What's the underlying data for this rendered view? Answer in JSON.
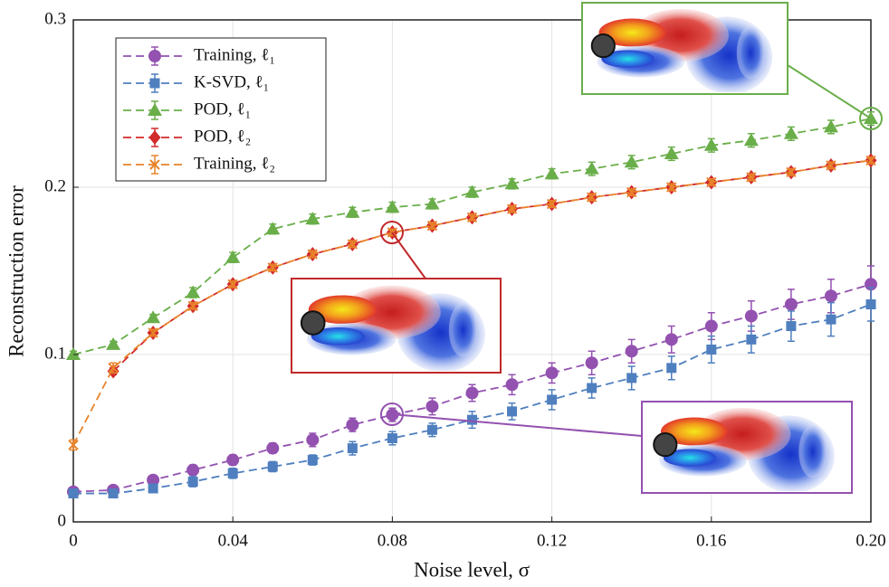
{
  "chart_data": {
    "type": "line",
    "x_label": "Noise level, σ",
    "y_label": "Reconstruction error",
    "x": [
      0,
      0.01,
      0.02,
      0.03,
      0.04,
      0.05,
      0.06,
      0.07,
      0.08,
      0.09,
      0.1,
      0.11,
      0.12,
      0.13,
      0.14,
      0.15,
      0.16,
      0.17,
      0.18,
      0.19,
      0.2
    ],
    "xlim": [
      0,
      0.2
    ],
    "ylim": [
      0,
      0.3
    ],
    "xticks": [
      0,
      0.04,
      0.08,
      0.12,
      0.16,
      {
        "value": 0.2,
        "label": "0.20"
      }
    ],
    "yticks": [
      0,
      0.1,
      0.2,
      0.3
    ],
    "grid": true,
    "legend_position": "upper left",
    "series": [
      {
        "name": "Training, ℓ₁",
        "color": "#9351b0",
        "marker": "circle",
        "values": [
          0.018,
          0.019,
          0.025,
          0.031,
          0.037,
          0.044,
          0.049,
          0.058,
          0.064,
          0.069,
          0.077,
          0.082,
          0.089,
          0.095,
          0.102,
          0.109,
          0.117,
          0.123,
          0.13,
          0.135,
          0.142
        ],
        "errors": [
          0.002,
          0.002,
          0.002,
          0.003,
          0.003,
          0.003,
          0.004,
          0.004,
          0.004,
          0.005,
          0.005,
          0.006,
          0.006,
          0.007,
          0.007,
          0.008,
          0.008,
          0.009,
          0.009,
          0.01,
          0.011
        ]
      },
      {
        "name": "K-SVD, ℓ₁",
        "color": "#4f7fbf",
        "marker": "square",
        "values": [
          0.017,
          0.017,
          0.02,
          0.024,
          0.029,
          0.033,
          0.037,
          0.044,
          0.05,
          0.055,
          0.061,
          0.066,
          0.073,
          0.08,
          0.086,
          0.092,
          0.103,
          0.109,
          0.117,
          0.121,
          0.13
        ],
        "errors": [
          0.002,
          0.002,
          0.002,
          0.003,
          0.003,
          0.003,
          0.003,
          0.004,
          0.004,
          0.004,
          0.005,
          0.005,
          0.006,
          0.006,
          0.007,
          0.007,
          0.008,
          0.008,
          0.009,
          0.01,
          0.01
        ]
      },
      {
        "name": "POD, ℓ₁",
        "color": "#6aae4a",
        "marker": "triangle",
        "values": [
          0.1,
          0.106,
          0.122,
          0.137,
          0.158,
          0.175,
          0.181,
          0.185,
          0.188,
          0.19,
          0.197,
          0.202,
          0.208,
          0.211,
          0.215,
          0.22,
          0.225,
          0.228,
          0.232,
          0.236,
          0.241
        ],
        "errors": [
          0.002,
          0.002,
          0.002,
          0.003,
          0.003,
          0.003,
          0.003,
          0.003,
          0.003,
          0.003,
          0.003,
          0.003,
          0.003,
          0.004,
          0.004,
          0.004,
          0.004,
          0.004,
          0.004,
          0.004,
          0.004
        ]
      },
      {
        "name": "POD, ℓ₂",
        "color": "#d22b2b",
        "marker": "diamond",
        "values": [
          null,
          0.09,
          0.113,
          0.129,
          0.142,
          0.152,
          0.16,
          0.166,
          0.173,
          0.177,
          0.182,
          0.187,
          0.19,
          0.194,
          0.197,
          0.2,
          0.203,
          0.206,
          0.209,
          0.213,
          0.216
        ],
        "errors": [
          null,
          0.002,
          0.002,
          0.002,
          0.002,
          0.002,
          0.002,
          0.002,
          0.002,
          0.002,
          0.002,
          0.002,
          0.002,
          0.002,
          0.002,
          0.002,
          0.002,
          0.002,
          0.002,
          0.002,
          0.002
        ]
      },
      {
        "name": "Training, ℓ₂",
        "color": "#e8832a",
        "marker": "x",
        "values": [
          0.046,
          0.092,
          0.113,
          0.129,
          0.142,
          0.152,
          0.16,
          0.166,
          0.173,
          0.177,
          0.182,
          0.187,
          0.19,
          0.194,
          0.197,
          0.2,
          0.203,
          0.206,
          0.209,
          0.213,
          0.216
        ],
        "errors": [
          0.003,
          0.003,
          0.002,
          0.002,
          0.002,
          0.002,
          0.002,
          0.002,
          0.002,
          0.002,
          0.002,
          0.002,
          0.002,
          0.002,
          0.002,
          0.002,
          0.002,
          0.002,
          0.002,
          0.002,
          0.002
        ]
      }
    ]
  }
}
